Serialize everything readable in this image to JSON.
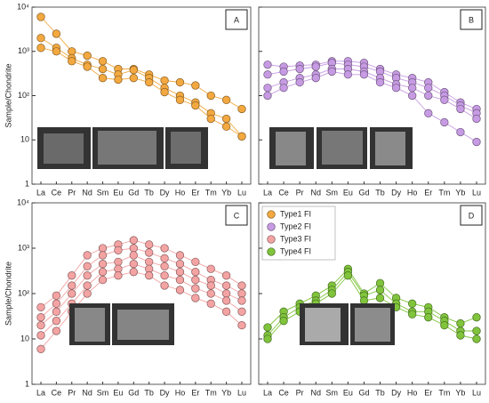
{
  "chart_data": [
    {
      "type": "line",
      "panel_label": "A",
      "ylabel": "Sample/Chondrite",
      "log_scale": true,
      "categories": [
        "La",
        "Ce",
        "Pr",
        "Nd",
        "Sm",
        "Eu",
        "Gd",
        "Tb",
        "Dy",
        "Ho",
        "Er",
        "Tm",
        "Yb",
        "Lu"
      ],
      "ylim": [
        1,
        10000
      ],
      "yticks": [
        1,
        10,
        {
          "value": 100,
          "label": "10²"
        },
        {
          "value": 1000,
          "label": "10³"
        },
        {
          "value": 10000,
          "label": "10⁴"
        }
      ],
      "series": [
        {
          "color": "#f3a940",
          "values": [
            6000,
            2500,
            1000,
            800,
            600,
            400,
            400,
            300,
            220,
            200,
            170,
            100,
            80,
            50
          ]
        },
        {
          "color": "#f3a940",
          "values": [
            2000,
            1200,
            700,
            500,
            400,
            300,
            380,
            250,
            150,
            100,
            70,
            40,
            30,
            12
          ]
        },
        {
          "color": "#f3a940",
          "values": [
            1200,
            1000,
            600,
            450,
            250,
            230,
            250,
            200,
            120,
            80,
            60,
            30,
            20,
            12
          ]
        }
      ]
    },
    {
      "type": "line",
      "panel_label": "B",
      "log_scale": true,
      "categories": [
        "La",
        "Ce",
        "Pr",
        "Nd",
        "Sm",
        "Eu",
        "Gd",
        "Tb",
        "Dy",
        "Ho",
        "Er",
        "Tm",
        "Yb",
        "Lu"
      ],
      "ylim": [
        1,
        10000
      ],
      "series": [
        {
          "color": "#c79be3",
          "values": [
            500,
            450,
            480,
            500,
            600,
            600,
            550,
            400,
            300,
            250,
            200,
            120,
            70,
            50
          ]
        },
        {
          "color": "#c79be3",
          "values": [
            300,
            350,
            400,
            450,
            550,
            500,
            450,
            350,
            250,
            200,
            150,
            100,
            60,
            40
          ]
        },
        {
          "color": "#c79be3",
          "values": [
            150,
            200,
            250,
            300,
            400,
            400,
            350,
            250,
            180,
            150,
            100,
            80,
            50,
            30
          ]
        },
        {
          "color": "#c79be3",
          "values": [
            100,
            150,
            200,
            250,
            350,
            300,
            300,
            200,
            150,
            100,
            40,
            25,
            15,
            9
          ]
        }
      ]
    },
    {
      "type": "line",
      "panel_label": "C",
      "ylabel": "Sample/Chondrite",
      "log_scale": true,
      "categories": [
        "La",
        "Ce",
        "Pr",
        "Nd",
        "Sm",
        "Eu",
        "Gd",
        "Tb",
        "Dy",
        "Ho",
        "Er",
        "Tm",
        "Yb",
        "Lu"
      ],
      "ylim": [
        1,
        10000
      ],
      "yticks": [
        1,
        10,
        {
          "value": 100,
          "label": "10²"
        },
        {
          "value": 1000,
          "label": "10³"
        },
        {
          "value": 10000,
          "label": "10⁴"
        }
      ],
      "series": [
        {
          "color": "#f4a3a3",
          "values": [
            50,
            90,
            250,
            700,
            1000,
            1200,
            1500,
            1200,
            1000,
            700,
            500,
            350,
            250,
            150
          ]
        },
        {
          "color": "#f4a3a3",
          "values": [
            30,
            60,
            150,
            400,
            700,
            900,
            1000,
            800,
            600,
            450,
            300,
            200,
            150,
            100
          ]
        },
        {
          "color": "#f4a3a3",
          "values": [
            20,
            40,
            100,
            250,
            450,
            500,
            700,
            500,
            400,
            300,
            200,
            150,
            100,
            70
          ]
        },
        {
          "color": "#f4a3a3",
          "values": [
            12,
            25,
            60,
            150,
            300,
            350,
            450,
            350,
            250,
            200,
            130,
            100,
            70,
            40
          ]
        },
        {
          "color": "#f4a3a3",
          "values": [
            6,
            15,
            40,
            100,
            200,
            250,
            300,
            250,
            150,
            120,
            80,
            60,
            40,
            20
          ]
        }
      ]
    },
    {
      "type": "line",
      "panel_label": "D",
      "log_scale": true,
      "categories": [
        "La",
        "Ce",
        "Pr",
        "Nd",
        "Sm",
        "Eu",
        "Gd",
        "Tb",
        "Dy",
        "Ho",
        "Er",
        "Tm",
        "Yb",
        "Lu"
      ],
      "ylim": [
        1,
        10000
      ],
      "legend_position": "upper left",
      "legend": [
        {
          "name": "Type1 FI",
          "color": "#f3a940"
        },
        {
          "name": "Type2 FI",
          "color": "#c79be3"
        },
        {
          "name": "Type3 FI",
          "color": "#f4a3a3"
        },
        {
          "name": "Type4 FI",
          "color": "#80c43c"
        }
      ],
      "series": [
        {
          "color": "#80c43c",
          "values": [
            18,
            40,
            60,
            90,
            150,
            350,
            100,
            170,
            80,
            60,
            50,
            30,
            22,
            30
          ]
        },
        {
          "color": "#80c43c",
          "values": [
            12,
            30,
            50,
            70,
            120,
            300,
            90,
            120,
            60,
            40,
            40,
            25,
            15,
            15
          ]
        },
        {
          "color": "#80c43c",
          "values": [
            10,
            25,
            40,
            60,
            100,
            250,
            70,
            80,
            50,
            35,
            30,
            20,
            12,
            10
          ]
        }
      ]
    }
  ]
}
